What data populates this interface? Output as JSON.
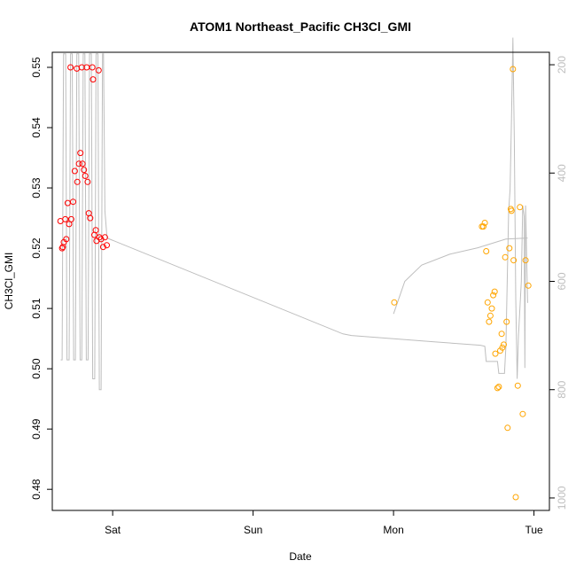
{
  "chart_data": {
    "type": "scatter",
    "title": "ATOM1 Northeast_Pacific CH3Cl_GMI",
    "xlabel": "Date",
    "ylabel": "CH3Cl_GMI",
    "x_ticks": [
      {
        "label": "Sat",
        "day": 1.0
      },
      {
        "label": "Sun",
        "day": 2.0
      },
      {
        "label": "Mon",
        "day": 3.0
      },
      {
        "label": "Tue",
        "day": 4.0
      }
    ],
    "xlim_days": [
      0.57,
      4.11
    ],
    "ylim": [
      0.4765,
      0.5525
    ],
    "y_ticks": [
      0.48,
      0.49,
      0.5,
      0.51,
      0.52,
      0.53,
      0.54,
      0.55
    ],
    "y2lim": [
      1023,
      177
    ],
    "y2_ticks": [
      200,
      400,
      600,
      800,
      1000
    ],
    "grid": false,
    "colors": {
      "series_red": "#ff0000",
      "series_orange": "#ffa500",
      "pressure_line": "#bebebe",
      "axis": "#000000"
    },
    "series": [
      {
        "color": "#ff0000",
        "points": [
          [
            0.628,
            0.5245
          ],
          [
            0.64,
            0.52
          ],
          [
            0.645,
            0.5202
          ],
          [
            0.652,
            0.521
          ],
          [
            0.663,
            0.5248
          ],
          [
            0.67,
            0.5215
          ],
          [
            0.68,
            0.5275
          ],
          [
            0.69,
            0.524
          ],
          [
            0.7,
            0.55
          ],
          [
            0.705,
            0.5248
          ],
          [
            0.718,
            0.5277
          ],
          [
            0.73,
            0.5328
          ],
          [
            0.745,
            0.5498
          ],
          [
            0.748,
            0.531
          ],
          [
            0.76,
            0.534
          ],
          [
            0.77,
            0.5358
          ],
          [
            0.78,
            0.55
          ],
          [
            0.785,
            0.534
          ],
          [
            0.795,
            0.533
          ],
          [
            0.805,
            0.532
          ],
          [
            0.815,
            0.55
          ],
          [
            0.822,
            0.531
          ],
          [
            0.83,
            0.5258
          ],
          [
            0.84,
            0.525
          ],
          [
            0.855,
            0.55
          ],
          [
            0.86,
            0.548
          ],
          [
            0.87,
            0.5222
          ],
          [
            0.88,
            0.523
          ],
          [
            0.885,
            0.5212
          ],
          [
            0.9,
            0.5495
          ],
          [
            0.905,
            0.5218
          ],
          [
            0.918,
            0.5215
          ],
          [
            0.932,
            0.5202
          ],
          [
            0.945,
            0.5218
          ],
          [
            0.958,
            0.5205
          ]
        ]
      },
      {
        "color": "#ffa500",
        "points": [
          [
            3.005,
            0.511
          ],
          [
            3.63,
            0.5236
          ],
          [
            3.64,
            0.5236
          ],
          [
            3.65,
            0.5242
          ],
          [
            3.66,
            0.5195
          ],
          [
            3.67,
            0.511
          ],
          [
            3.68,
            0.5078
          ],
          [
            3.69,
            0.5088
          ],
          [
            3.7,
            0.51
          ],
          [
            3.71,
            0.5122
          ],
          [
            3.72,
            0.5128
          ],
          [
            3.725,
            0.5025
          ],
          [
            3.74,
            0.4968
          ],
          [
            3.75,
            0.497
          ],
          [
            3.76,
            0.503
          ],
          [
            3.77,
            0.5058
          ],
          [
            3.775,
            0.5035
          ],
          [
            3.785,
            0.504
          ],
          [
            3.795,
            0.5185
          ],
          [
            3.805,
            0.5078
          ],
          [
            3.812,
            0.4902
          ],
          [
            3.825,
            0.52
          ],
          [
            3.835,
            0.5265
          ],
          [
            3.84,
            0.5262
          ],
          [
            3.85,
            0.5497
          ],
          [
            3.855,
            0.518
          ],
          [
            3.87,
            0.4787
          ],
          [
            3.885,
            0.4972
          ],
          [
            3.9,
            0.5268
          ],
          [
            3.92,
            0.4925
          ],
          [
            3.94,
            0.518
          ],
          [
            3.96,
            0.5138
          ]
        ]
      }
    ],
    "pressure_line": [
      [
        0.63,
        745
      ],
      [
        0.64,
        745
      ],
      [
        0.65,
        180
      ],
      [
        0.665,
        180
      ],
      [
        0.675,
        745
      ],
      [
        0.69,
        745
      ],
      [
        0.7,
        180
      ],
      [
        0.712,
        180
      ],
      [
        0.722,
        745
      ],
      [
        0.735,
        745
      ],
      [
        0.745,
        180
      ],
      [
        0.758,
        180
      ],
      [
        0.768,
        745
      ],
      [
        0.78,
        745
      ],
      [
        0.79,
        180
      ],
      [
        0.802,
        180
      ],
      [
        0.812,
        745
      ],
      [
        0.825,
        745
      ],
      [
        0.835,
        180
      ],
      [
        0.848,
        180
      ],
      [
        0.858,
        780
      ],
      [
        0.872,
        780
      ],
      [
        0.882,
        180
      ],
      [
        0.895,
        180
      ],
      [
        0.905,
        800
      ],
      [
        0.918,
        800
      ],
      [
        0.928,
        180
      ],
      [
        0.935,
        180
      ],
      [
        0.945,
        470
      ],
      [
        0.96,
        520
      ],
      [
        2.64,
        697
      ],
      [
        2.7,
        700
      ],
      [
        3.3,
        712
      ],
      [
        3.62,
        718
      ],
      [
        3.65,
        720
      ],
      [
        3.66,
        748
      ],
      [
        3.7,
        748
      ],
      [
        3.74,
        748
      ],
      [
        3.75,
        770
      ],
      [
        3.79,
        770
      ],
      [
        3.8,
        720
      ],
      [
        3.82,
        470
      ],
      [
        3.83,
        430
      ],
      [
        3.84,
        300
      ],
      [
        3.85,
        150
      ],
      [
        3.86,
        340
      ],
      [
        3.87,
        630
      ],
      [
        3.88,
        780
      ],
      [
        3.89,
        700
      ],
      [
        3.9,
        650
      ],
      [
        3.91,
        600
      ],
      [
        3.92,
        460
      ],
      [
        3.93,
        480
      ],
      [
        3.935,
        760
      ],
      [
        3.94,
        460
      ],
      [
        3.955,
        640
      ]
    ],
    "pressure_line_2": [
      [
        3.0,
        660
      ],
      [
        3.08,
        600
      ],
      [
        3.2,
        570
      ],
      [
        3.4,
        550
      ],
      [
        3.6,
        538
      ],
      [
        3.8,
        522
      ],
      [
        3.955,
        520
      ]
    ]
  }
}
